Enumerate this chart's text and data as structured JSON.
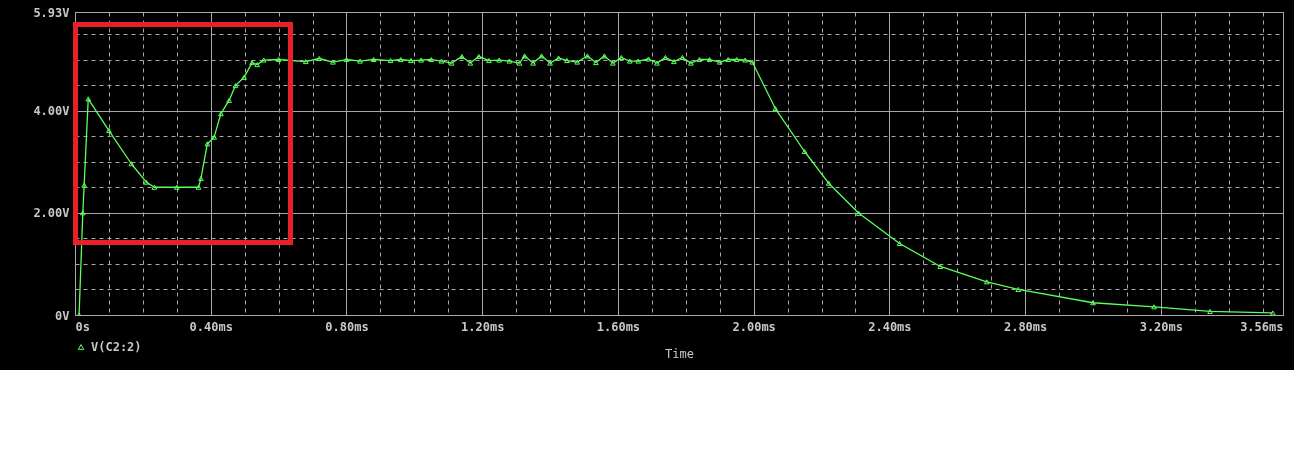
{
  "chart_data": {
    "type": "line",
    "xlabel": "Time",
    "legend": "bottom left",
    "grid": true,
    "marker": "triangle",
    "line_style": "solid",
    "xlim": [
      0,
      3.56
    ],
    "xticks": [
      {
        "value": 0,
        "label": "0s"
      },
      {
        "value": 0.1,
        "label": null
      },
      {
        "value": 0.2,
        "label": null
      },
      {
        "value": 0.3,
        "label": null
      },
      {
        "value": 0.4,
        "label": "0.40ms"
      },
      {
        "value": 0.5,
        "label": null
      },
      {
        "value": 0.6,
        "label": null
      },
      {
        "value": 0.7,
        "label": null
      },
      {
        "value": 0.8,
        "label": "0.80ms"
      },
      {
        "value": 0.9,
        "label": null
      },
      {
        "value": 1.0,
        "label": null
      },
      {
        "value": 1.1,
        "label": null
      },
      {
        "value": 1.2,
        "label": "1.20ms"
      },
      {
        "value": 1.3,
        "label": null
      },
      {
        "value": 1.4,
        "label": null
      },
      {
        "value": 1.5,
        "label": null
      },
      {
        "value": 1.6,
        "label": "1.60ms"
      },
      {
        "value": 1.7,
        "label": null
      },
      {
        "value": 1.8,
        "label": null
      },
      {
        "value": 1.9,
        "label": null
      },
      {
        "value": 2.0,
        "label": "2.00ms"
      },
      {
        "value": 2.1,
        "label": null
      },
      {
        "value": 2.2,
        "label": null
      },
      {
        "value": 2.3,
        "label": null
      },
      {
        "value": 2.4,
        "label": "2.40ms"
      },
      {
        "value": 2.5,
        "label": null
      },
      {
        "value": 2.6,
        "label": null
      },
      {
        "value": 2.7,
        "label": null
      },
      {
        "value": 2.8,
        "label": "2.80ms"
      },
      {
        "value": 2.9,
        "label": null
      },
      {
        "value": 3.0,
        "label": null
      },
      {
        "value": 3.1,
        "label": null
      },
      {
        "value": 3.2,
        "label": "3.20ms"
      },
      {
        "value": 3.3,
        "label": null
      },
      {
        "value": 3.4,
        "label": null
      },
      {
        "value": 3.5,
        "label": null
      },
      {
        "value": 3.56,
        "label": "3.56ms"
      }
    ],
    "ylim": [
      0,
      5.93
    ],
    "yticks": [
      {
        "value": 0,
        "label": "0V"
      },
      {
        "value": 0.5,
        "label": null
      },
      {
        "value": 1,
        "label": null
      },
      {
        "value": 1.5,
        "label": null
      },
      {
        "value": 2,
        "label": "2.00V"
      },
      {
        "value": 2.5,
        "label": null
      },
      {
        "value": 3,
        "label": null
      },
      {
        "value": 3.5,
        "label": null
      },
      {
        "value": 4,
        "label": "4.00V"
      },
      {
        "value": 4.5,
        "label": null
      },
      {
        "value": 5,
        "label": null
      },
      {
        "value": 5.5,
        "label": null
      },
      {
        "value": 5.93,
        "label": "5.93V"
      }
    ],
    "series": [
      {
        "name": "V(C2:2)",
        "color": "#5cff5c",
        "x": [
          0.012,
          0.023,
          0.027,
          0.039,
          0.1,
          0.166,
          0.21,
          0.234,
          0.3,
          0.364,
          0.371,
          0.39,
          0.41,
          0.43,
          0.454,
          0.473,
          0.498,
          0.522,
          0.537,
          0.556,
          0.6,
          0.68,
          0.72,
          0.76,
          0.8,
          0.84,
          0.88,
          0.93,
          0.96,
          0.99,
          1.02,
          1.05,
          1.08,
          1.11,
          1.14,
          1.165,
          1.19,
          1.22,
          1.25,
          1.28,
          1.31,
          1.325,
          1.35,
          1.375,
          1.4,
          1.425,
          1.45,
          1.48,
          1.51,
          1.535,
          1.56,
          1.585,
          1.61,
          1.635,
          1.66,
          1.69,
          1.715,
          1.74,
          1.765,
          1.79,
          1.815,
          1.84,
          1.87,
          1.9,
          1.925,
          1.95,
          1.975,
          1.996,
          2.064,
          2.15,
          2.221,
          2.31,
          2.43,
          2.55,
          2.687,
          2.78,
          3.0,
          3.18,
          3.345,
          3.53
        ],
        "values": [
          0,
          2.0,
          2.54,
          4.23,
          3.61,
          2.96,
          2.6,
          2.5,
          2.5,
          2.5,
          2.67,
          3.35,
          3.48,
          3.94,
          4.2,
          4.49,
          4.65,
          4.94,
          4.9,
          4.99,
          5.0,
          4.96,
          5.02,
          4.95,
          5.0,
          4.97,
          5.0,
          4.98,
          5.0,
          4.98,
          4.99,
          5.0,
          4.97,
          4.93,
          5.06,
          4.93,
          5.06,
          4.98,
          4.99,
          4.97,
          4.93,
          5.07,
          4.93,
          5.07,
          4.93,
          5.03,
          4.98,
          4.95,
          5.07,
          4.94,
          5.07,
          4.93,
          5.04,
          4.97,
          4.97,
          5.01,
          4.93,
          5.04,
          4.96,
          5.04,
          4.93,
          5.0,
          5.0,
          4.95,
          5.0,
          5.0,
          4.99,
          4.95,
          4.04,
          3.2,
          2.58,
          1.99,
          1.4,
          0.95,
          0.65,
          0.5,
          0.24,
          0.16,
          0.07,
          0.04
        ]
      }
    ]
  }
}
